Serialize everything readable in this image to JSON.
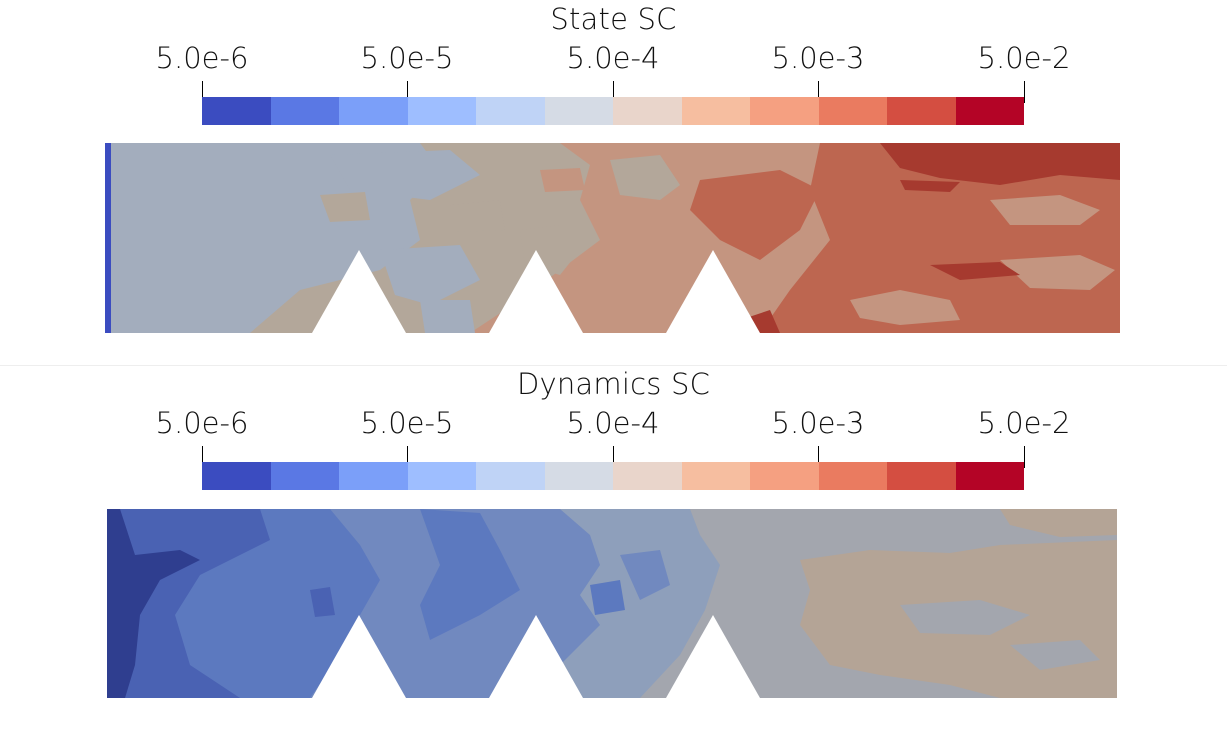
{
  "colorbar": {
    "ticks": [
      "5.0e-6",
      "5.0e-5",
      "5.0e-4",
      "5.0e-3",
      "5.0e-2"
    ],
    "colors": [
      "#3b4cc0",
      "#5a78e4",
      "#7b9ff9",
      "#9ebeff",
      "#bfd3f6",
      "#d5dbe5",
      "#e9d5cb",
      "#f6bea0",
      "#f5a081",
      "#ea7b60",
      "#d44e41",
      "#b40426"
    ]
  },
  "panels": [
    {
      "title": "State SC",
      "field_colors": {
        "wall": "#3b4cc0",
        "low": "#a3adbd",
        "mid": "#b3a79a",
        "upper": "#c49580",
        "high": "#bd6650",
        "hot": "#a63a2f"
      }
    },
    {
      "title": "Dynamics SC",
      "field_colors": {
        "darkest": "#2f3e8f",
        "dark": "#4a62b3",
        "mid": "#5c79bf",
        "light": "#7189bf",
        "lighter": "#8e9fbb",
        "grey": "#a3a6ae",
        "tan": "#b4a496"
      }
    }
  ]
}
